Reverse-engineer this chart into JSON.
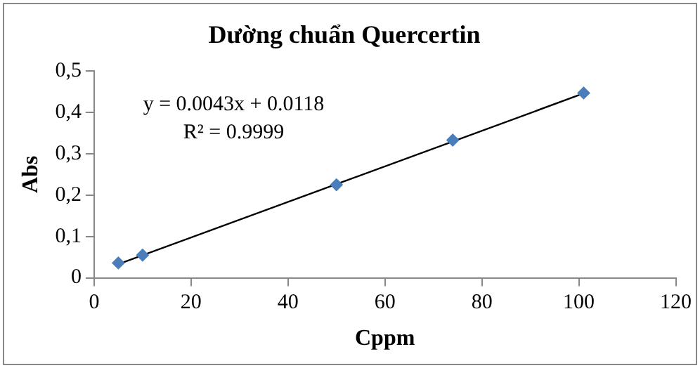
{
  "chart_data": {
    "type": "scatter",
    "title": "Dường chuẩn Quercertin",
    "xlabel": "Cppm",
    "ylabel": "Abs",
    "series": [
      {
        "type": "scatter",
        "color": "#4a7ebb",
        "marker": "diamond",
        "x": [
          5,
          10,
          50,
          74,
          101
        ],
        "values": [
          0.036,
          0.055,
          0.225,
          0.333,
          0.447
        ]
      },
      {
        "type": "line",
        "color": "#000000",
        "marker": "none",
        "x": [
          5,
          101
        ],
        "values": [
          0.033,
          0.446
        ]
      }
    ],
    "annotations": [
      "y = 0.0043x + 0.0118",
      "R² = 0.9999"
    ],
    "xlim": [
      0,
      120
    ],
    "xticks": [
      0,
      20,
      40,
      60,
      80,
      100,
      120
    ],
    "ylim": [
      0,
      0.5
    ],
    "yticks": [
      {
        "value": 0,
        "label": "0"
      },
      {
        "value": 0.1,
        "label": "0,1"
      },
      {
        "value": 0.2,
        "label": "0,2"
      },
      {
        "value": 0.3,
        "label": "0,3"
      },
      {
        "value": 0.4,
        "label": "0,4"
      },
      {
        "value": 0.5,
        "label": "0,5"
      }
    ],
    "grid": false,
    "legend": false
  }
}
